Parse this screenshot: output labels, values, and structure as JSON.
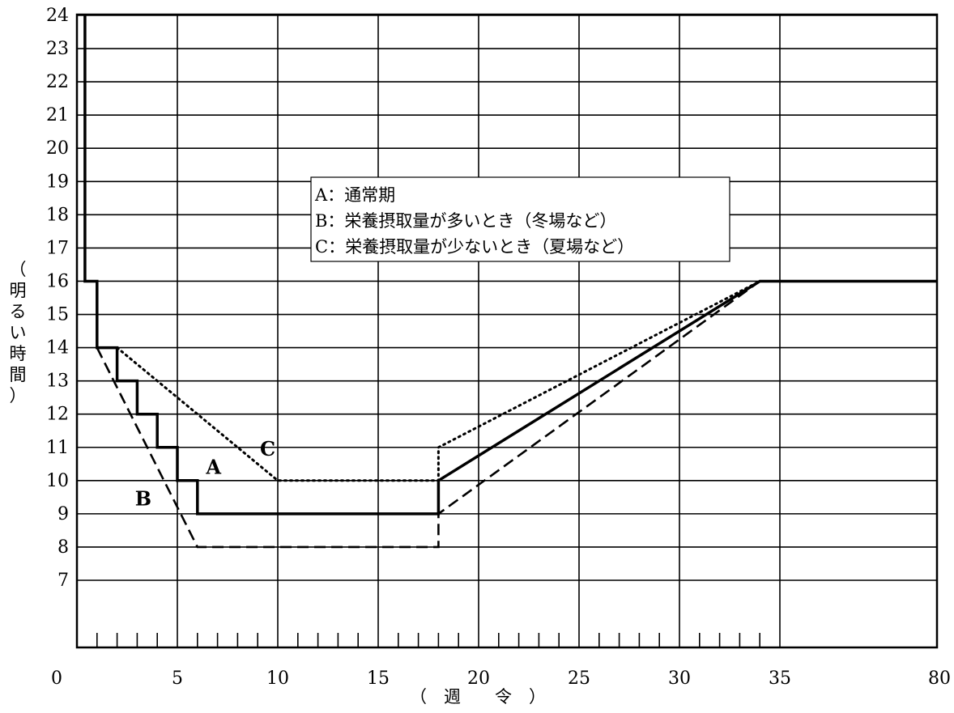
{
  "chart_data": {
    "type": "line",
    "title": "",
    "xlabel": "（　週　　令　）",
    "ylabel": "（明るい時間）",
    "x_ticks": [
      "0",
      "5",
      "10",
      "15",
      "20",
      "25",
      "30",
      "35",
      "80"
    ],
    "x_tick_values": [
      0,
      5,
      10,
      15,
      20,
      25,
      30,
      35,
      80
    ],
    "y_ticks": [
      "7",
      "8",
      "9",
      "10",
      "11",
      "12",
      "13",
      "14",
      "15",
      "16",
      "17",
      "18",
      "19",
      "20",
      "21",
      "22",
      "23",
      "24"
    ],
    "grid": true,
    "legend": {
      "placement": "top-center",
      "entries": [
        "A：通常期",
        "B：栄養摂取量が多いとき（冬場など）",
        "C：栄養摂取量が少ないとき（夏場など）"
      ]
    },
    "series": [
      {
        "name": "A",
        "style": "solid",
        "points": [
          [
            0.4,
            24
          ],
          [
            0.4,
            16
          ],
          [
            1,
            16
          ],
          [
            1,
            14
          ],
          [
            2,
            14
          ],
          [
            2,
            13
          ],
          [
            3,
            13
          ],
          [
            3,
            12
          ],
          [
            4,
            12
          ],
          [
            4,
            11
          ],
          [
            5,
            11
          ],
          [
            5,
            10
          ],
          [
            6,
            10
          ],
          [
            6,
            9
          ],
          [
            18,
            9
          ],
          [
            18,
            10
          ],
          [
            34,
            16
          ],
          [
            80,
            16
          ]
        ]
      },
      {
        "name": "B",
        "style": "dashed",
        "points": [
          [
            1,
            14
          ],
          [
            6,
            8
          ],
          [
            18,
            8
          ],
          [
            18,
            9
          ],
          [
            34,
            16
          ]
        ]
      },
      {
        "name": "C",
        "style": "dotted",
        "points": [
          [
            2,
            14
          ],
          [
            10,
            10
          ],
          [
            18,
            10
          ],
          [
            18,
            11
          ],
          [
            34,
            16
          ]
        ]
      }
    ],
    "series_labels": [
      {
        "text": "A",
        "x": 6.8,
        "y": 10.2
      },
      {
        "text": "B",
        "x": 3.3,
        "y": 9.25
      },
      {
        "text": "C",
        "x": 9.5,
        "y": 10.75
      }
    ]
  }
}
